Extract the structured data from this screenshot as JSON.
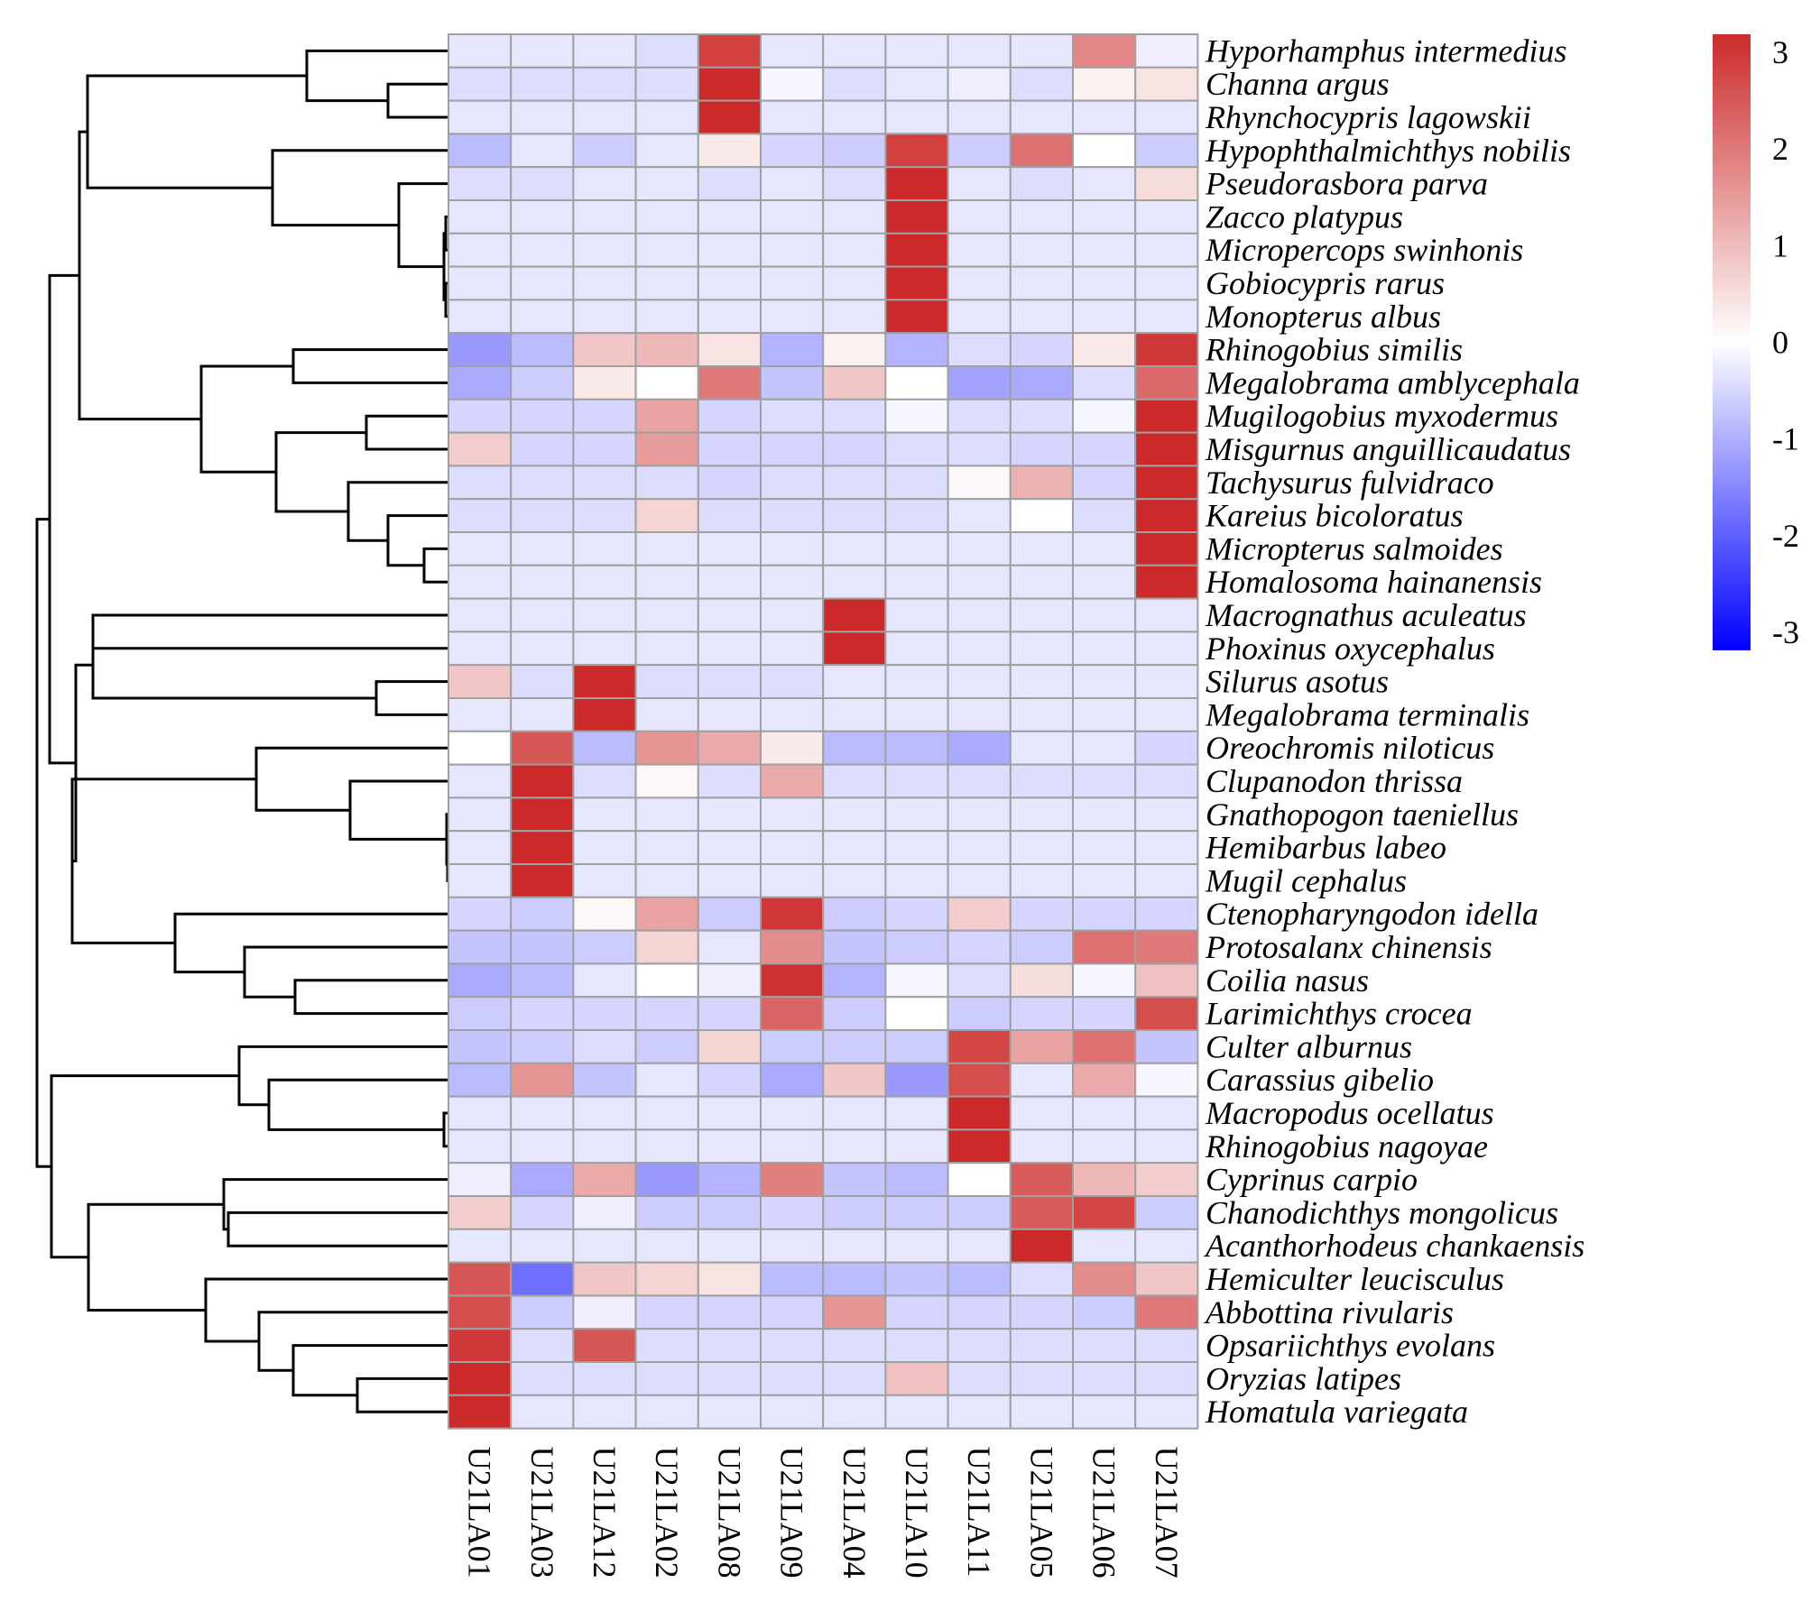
{
  "chart_data": {
    "type": "heatmap",
    "title": "",
    "columns": [
      "U21LA01",
      "U21LA03",
      "U21LA12",
      "U21LA02",
      "U21LA08",
      "U21LA09",
      "U21LA04",
      "U21LA10",
      "U21LA11",
      "U21LA05",
      "U21LA06",
      "U21LA07"
    ],
    "rows": [
      "Hyporhamphus intermedius",
      "Channa argus",
      "Rhynchocypris lagowskii",
      "Hypophthalmichthys nobilis",
      "Pseudorasbora parva",
      "Zacco platypus",
      "Micropercops swinhonis",
      "Gobiocypris rarus",
      "Monopterus albus",
      "Rhinogobius similis",
      "Megalobrama amblycephala",
      "Mugilogobius myxodermus",
      "Misgurnus anguillicaudatus",
      "Tachysurus fulvidraco",
      "Kareius bicoloratus",
      "Micropterus salmoides",
      "Homalosoma hainanensis",
      "Macrognathus aculeatus",
      "Phoxinus oxycephalus",
      "Silurus asotus",
      "Megalobrama terminalis",
      "Oreochromis niloticus",
      "Clupanodon thrissa",
      "Gnathopogon taeniellus",
      "Hemibarbus labeo",
      "Mugil cephalus",
      "Ctenopharyngodon idella",
      "Protosalanx chinensis",
      "Coilia nasus",
      "Larimichthys crocea",
      "Culter alburnus",
      "Carassius gibelio",
      "Macropodus ocellatus",
      "Rhinogobius nagoyae",
      "Cyprinus carpio",
      "Chanodichthys mongolicus",
      "Acanthorhodeus chankaensis",
      "Hemiculter leucisculus",
      "Abbottina rivularis",
      "Opsariichthys evolans",
      "Oryzias latipes",
      "Homatula variegata"
    ],
    "values": [
      [
        -0.3,
        -0.3,
        -0.3,
        -0.4,
        2.7,
        -0.3,
        -0.3,
        -0.3,
        -0.3,
        -0.3,
        1.7,
        -0.2
      ],
      [
        -0.4,
        -0.4,
        -0.4,
        -0.4,
        3.2,
        -0.1,
        -0.4,
        -0.3,
        -0.2,
        -0.4,
        0.2,
        0.4
      ],
      [
        -0.3,
        -0.3,
        -0.3,
        -0.3,
        3.3,
        -0.3,
        -0.3,
        -0.3,
        -0.3,
        -0.3,
        -0.3,
        -0.3
      ],
      [
        -0.8,
        -0.3,
        -0.6,
        -0.3,
        0.3,
        -0.5,
        -0.6,
        2.7,
        -0.6,
        2.0,
        0.0,
        -0.6
      ],
      [
        -0.4,
        -0.4,
        -0.3,
        -0.3,
        -0.4,
        -0.3,
        -0.4,
        3.3,
        -0.3,
        -0.4,
        -0.3,
        0.5
      ],
      [
        -0.3,
        -0.3,
        -0.3,
        -0.3,
        -0.3,
        -0.3,
        -0.3,
        3.3,
        -0.3,
        -0.3,
        -0.3,
        -0.3
      ],
      [
        -0.3,
        -0.3,
        -0.3,
        -0.3,
        -0.3,
        -0.3,
        -0.3,
        3.3,
        -0.3,
        -0.3,
        -0.3,
        -0.3
      ],
      [
        -0.3,
        -0.3,
        -0.3,
        -0.3,
        -0.3,
        -0.3,
        -0.3,
        3.3,
        -0.3,
        -0.3,
        -0.3,
        -0.3
      ],
      [
        -0.3,
        -0.3,
        -0.3,
        -0.3,
        -0.3,
        -0.3,
        -0.3,
        3.3,
        -0.3,
        -0.3,
        -0.3,
        -0.3
      ],
      [
        -1.2,
        -0.8,
        0.8,
        1.0,
        0.4,
        -0.9,
        0.2,
        -0.9,
        -0.4,
        -0.5,
        0.3,
        2.8
      ],
      [
        -1.0,
        -0.6,
        0.3,
        0.0,
        1.9,
        -0.7,
        0.8,
        0.0,
        -1.1,
        -1.0,
        -0.4,
        2.1
      ],
      [
        -0.5,
        -0.5,
        -0.5,
        1.3,
        -0.5,
        -0.4,
        -0.4,
        -0.1,
        -0.4,
        -0.4,
        -0.1,
        3.0
      ],
      [
        0.7,
        -0.5,
        -0.5,
        1.4,
        -0.5,
        -0.5,
        -0.5,
        -0.4,
        -0.4,
        -0.5,
        -0.5,
        3.0
      ],
      [
        -0.4,
        -0.4,
        -0.4,
        -0.4,
        -0.5,
        -0.4,
        -0.4,
        -0.4,
        0.1,
        1.1,
        -0.5,
        3.1
      ],
      [
        -0.4,
        -0.4,
        -0.4,
        0.6,
        -0.4,
        -0.4,
        -0.4,
        -0.4,
        -0.3,
        0.0,
        -0.4,
        3.1
      ],
      [
        -0.3,
        -0.3,
        -0.3,
        -0.3,
        -0.3,
        -0.3,
        -0.3,
        -0.3,
        -0.3,
        -0.3,
        -0.3,
        3.3
      ],
      [
        -0.3,
        -0.3,
        -0.3,
        -0.3,
        -0.3,
        -0.3,
        -0.3,
        -0.3,
        -0.3,
        -0.3,
        -0.3,
        3.3
      ],
      [
        -0.3,
        -0.3,
        -0.3,
        -0.3,
        -0.3,
        -0.3,
        3.3,
        -0.3,
        -0.3,
        -0.3,
        -0.3,
        -0.3
      ],
      [
        -0.3,
        -0.3,
        -0.3,
        -0.3,
        -0.3,
        -0.3,
        3.3,
        -0.3,
        -0.3,
        -0.3,
        -0.3,
        -0.3
      ],
      [
        0.8,
        -0.4,
        3.2,
        -0.4,
        -0.4,
        -0.4,
        -0.3,
        -0.3,
        -0.3,
        -0.3,
        -0.3,
        -0.3
      ],
      [
        -0.3,
        -0.3,
        3.3,
        -0.3,
        -0.3,
        -0.3,
        -0.3,
        -0.3,
        -0.3,
        -0.3,
        -0.3,
        -0.3
      ],
      [
        0.0,
        2.4,
        -0.8,
        1.5,
        1.2,
        0.3,
        -0.8,
        -0.8,
        -1.0,
        -0.3,
        -0.3,
        -0.5
      ],
      [
        -0.3,
        3.2,
        -0.4,
        0.1,
        -0.4,
        1.2,
        -0.4,
        -0.4,
        -0.4,
        -0.4,
        -0.4,
        -0.4
      ],
      [
        -0.3,
        3.3,
        -0.3,
        -0.3,
        -0.3,
        -0.3,
        -0.3,
        -0.3,
        -0.3,
        -0.3,
        -0.3,
        -0.3
      ],
      [
        -0.3,
        3.3,
        -0.3,
        -0.3,
        -0.3,
        -0.3,
        -0.3,
        -0.3,
        -0.3,
        -0.3,
        -0.3,
        -0.3
      ],
      [
        -0.3,
        3.3,
        -0.3,
        -0.3,
        -0.3,
        -0.3,
        -0.3,
        -0.3,
        -0.3,
        -0.3,
        -0.3,
        -0.3
      ],
      [
        -0.5,
        -0.6,
        0.1,
        1.3,
        -0.6,
        2.8,
        -0.6,
        -0.5,
        0.7,
        -0.5,
        -0.5,
        -0.5
      ],
      [
        -0.7,
        -0.7,
        -0.6,
        0.6,
        -0.3,
        1.6,
        -0.7,
        -0.6,
        -0.5,
        -0.6,
        2.0,
        1.9
      ],
      [
        -1.0,
        -0.8,
        -0.3,
        0.0,
        -0.2,
        2.9,
        -0.9,
        -0.1,
        -0.4,
        0.5,
        -0.1,
        0.9
      ],
      [
        -0.6,
        -0.5,
        -0.5,
        -0.5,
        -0.5,
        2.2,
        -0.6,
        0.0,
        -0.6,
        -0.5,
        -0.5,
        2.5
      ],
      [
        -0.7,
        -0.6,
        -0.4,
        -0.6,
        0.6,
        -0.6,
        -0.6,
        -0.6,
        2.6,
        1.3,
        2.0,
        -0.7
      ],
      [
        -0.8,
        1.5,
        -0.7,
        -0.3,
        -0.5,
        -1.0,
        0.8,
        -1.2,
        2.5,
        -0.3,
        1.2,
        -0.1
      ],
      [
        -0.3,
        -0.3,
        -0.3,
        -0.3,
        -0.3,
        -0.3,
        -0.3,
        -0.3,
        3.3,
        -0.3,
        -0.3,
        -0.3
      ],
      [
        -0.3,
        -0.3,
        -0.3,
        -0.3,
        -0.3,
        -0.3,
        -0.3,
        -0.3,
        3.3,
        -0.3,
        -0.3,
        -0.3
      ],
      [
        -0.2,
        -1.0,
        1.2,
        -1.2,
        -0.9,
        1.8,
        -0.7,
        -0.8,
        0.0,
        2.3,
        1.0,
        0.7
      ],
      [
        0.7,
        -0.5,
        -0.2,
        -0.6,
        -0.6,
        -0.5,
        -0.6,
        -0.6,
        -0.6,
        2.3,
        2.6,
        -0.6
      ],
      [
        -0.3,
        -0.3,
        -0.3,
        -0.3,
        -0.3,
        -0.3,
        -0.3,
        -0.3,
        -0.3,
        3.3,
        -0.3,
        -0.3
      ],
      [
        2.4,
        -1.7,
        0.8,
        0.6,
        0.4,
        -0.8,
        -0.8,
        -0.7,
        -0.8,
        -0.4,
        1.6,
        0.8
      ],
      [
        2.5,
        -0.6,
        -0.2,
        -0.5,
        -0.5,
        -0.5,
        1.5,
        -0.5,
        -0.5,
        -0.5,
        -0.6,
        1.9
      ],
      [
        2.8,
        -0.4,
        2.4,
        -0.4,
        -0.4,
        -0.4,
        -0.4,
        -0.4,
        -0.4,
        -0.4,
        -0.4,
        -0.4
      ],
      [
        3.1,
        -0.4,
        -0.4,
        -0.4,
        -0.4,
        -0.4,
        -0.4,
        0.9,
        -0.4,
        -0.4,
        -0.4,
        -0.4
      ],
      [
        3.3,
        -0.3,
        -0.3,
        -0.3,
        -0.3,
        -0.3,
        -0.3,
        -0.3,
        -0.3,
        -0.3,
        -0.3,
        -0.3
      ]
    ],
    "color_scale": {
      "min": -3,
      "max": 3,
      "low_color": "#0000ff",
      "mid_color": "#ffffff",
      "high_color": "#cc2a2a",
      "ticks": [
        "3",
        "2",
        "1",
        "0",
        "-1",
        "-2",
        "-3"
      ]
    },
    "dendrogram": "row clustering tree shown on left"
  }
}
